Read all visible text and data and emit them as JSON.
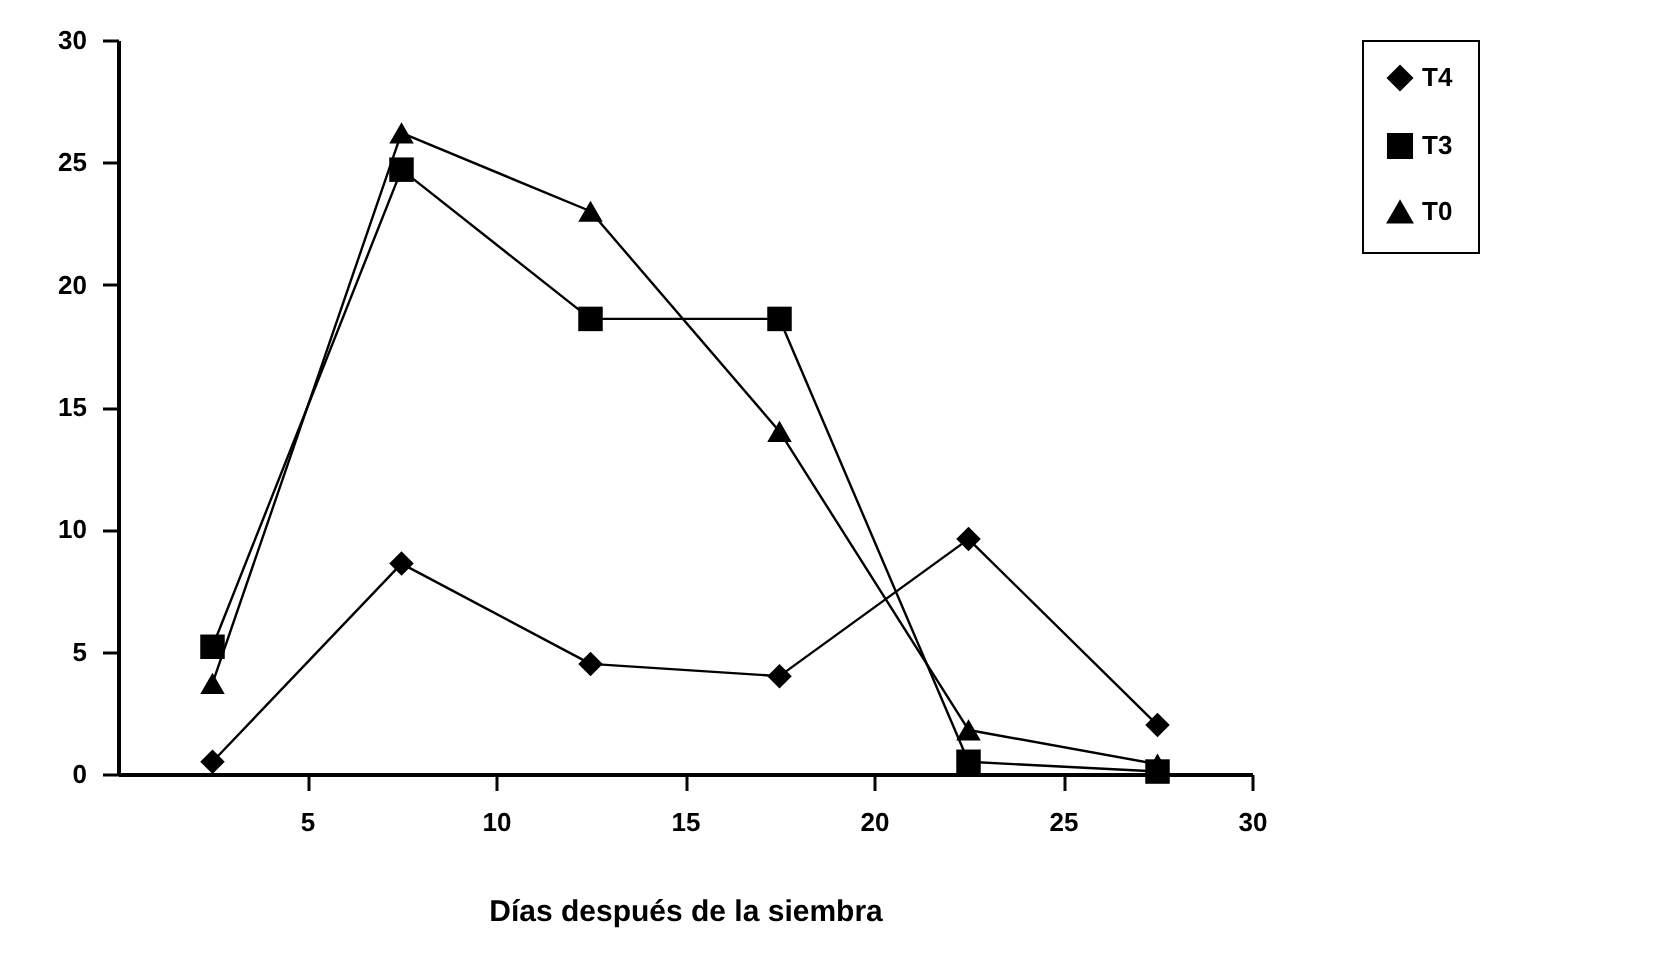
{
  "chart_data": {
    "type": "line",
    "xlabel": "Días después de la siembra",
    "xlim": [
      0,
      30
    ],
    "xticks": [
      5,
      10,
      15,
      20,
      25,
      30
    ],
    "ylim": [
      0,
      30
    ],
    "yticks": [
      0,
      5,
      10,
      15,
      20,
      25,
      30
    ],
    "grid": false,
    "legend": "right",
    "x": [
      2.5,
      7.5,
      12.5,
      17.5,
      22.5,
      27.5
    ],
    "series": [
      {
        "name": "T4",
        "color": "#000000",
        "marker": "diamond",
        "values": [
          0.5,
          8.6,
          4.5,
          4.0,
          9.6,
          2.0
        ]
      },
      {
        "name": "T3",
        "color": "#000000",
        "marker": "square",
        "values": [
          5.2,
          24.7,
          18.6,
          18.6,
          0.5,
          0.1
        ]
      },
      {
        "name": "T0",
        "color": "#000000",
        "marker": "triangle",
        "values": [
          3.7,
          26.2,
          23.0,
          14.0,
          1.8,
          0.4
        ]
      }
    ]
  }
}
